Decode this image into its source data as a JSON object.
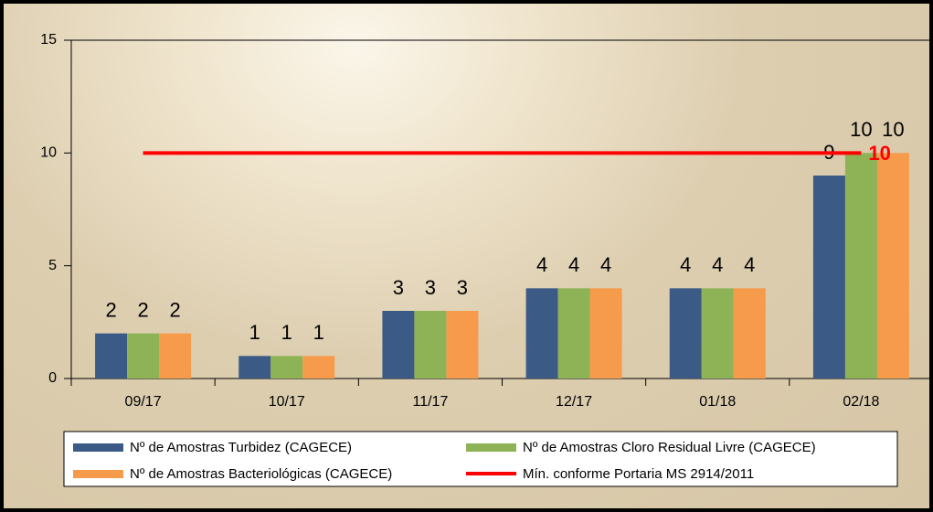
{
  "chart_data": {
    "type": "bar",
    "categories": [
      "09/17",
      "10/17",
      "11/17",
      "12/17",
      "01/18",
      "02/18"
    ],
    "series": [
      {
        "name": "Nº de Amostras Turbidez (CAGECE)",
        "color": "#3b5a86",
        "values": [
          2,
          1,
          3,
          4,
          4,
          9
        ]
      },
      {
        "name": "Nº de Amostras Cloro Residual Livre (CAGECE)",
        "color": "#8db356",
        "values": [
          2,
          1,
          3,
          4,
          4,
          10
        ]
      },
      {
        "name": "Nº de Amostras Bacteriológicas (CAGECE)",
        "color": "#f69a4b",
        "values": [
          2,
          1,
          3,
          4,
          4,
          10
        ]
      },
      {
        "name": "Mín. conforme Portaria MS 2914/2011",
        "color": "#ff0000",
        "type": "line",
        "values": [
          10,
          10,
          10,
          10,
          10,
          10
        ]
      }
    ],
    "ylim": [
      0,
      15
    ],
    "yticks": [
      0,
      5,
      10,
      15
    ],
    "grid": false
  }
}
